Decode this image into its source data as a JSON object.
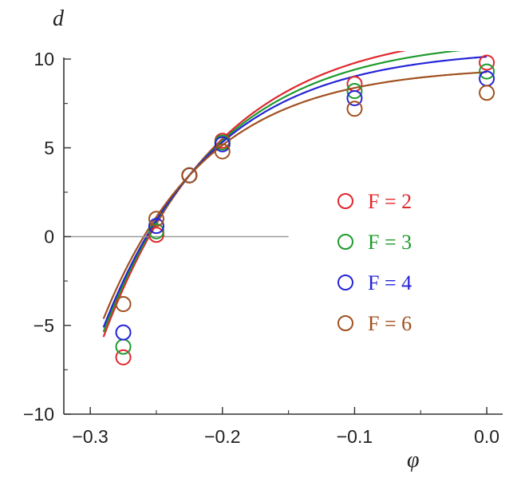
{
  "chart_data": {
    "type": "scatter",
    "title": "",
    "xlabel": "φ",
    "ylabel": "d",
    "xlim": [
      -0.32,
      0.012
    ],
    "ylim": [
      -10,
      10
    ],
    "x_ticks": [
      {
        "value": -0.3,
        "label": "−0.3"
      },
      {
        "value": -0.2,
        "label": "−0.2"
      },
      {
        "value": -0.1,
        "label": "−0.1"
      },
      {
        "value": 0.0,
        "label": "0.0"
      }
    ],
    "y_ticks": [
      {
        "value": 10,
        "label": "10"
      },
      {
        "value": 5,
        "label": "5"
      },
      {
        "value": 0,
        "label": "0"
      },
      {
        "value": -5,
        "label": "−5"
      },
      {
        "value": -10,
        "label": "−10"
      }
    ],
    "reference_line": {
      "y": 0,
      "x_from": -0.32,
      "x_to": -0.15,
      "color": "#999999"
    },
    "grid": false,
    "legend_position": "right",
    "series": [
      {
        "name": "F = 2",
        "color": "#e0282d",
        "x": [
          -0.275,
          -0.25,
          -0.225,
          -0.2,
          -0.1,
          0.0
        ],
        "y": [
          -6.8,
          0.1,
          3.45,
          5.4,
          8.6,
          9.8
        ]
      },
      {
        "name": "F = 3",
        "color": "#1f9a2e",
        "x": [
          -0.275,
          -0.25,
          -0.225,
          -0.2,
          -0.1,
          0.0
        ],
        "y": [
          -6.2,
          0.3,
          3.45,
          5.3,
          8.2,
          9.3
        ]
      },
      {
        "name": "F = 4",
        "color": "#2424d8",
        "x": [
          -0.275,
          -0.25,
          -0.225,
          -0.2,
          -0.1,
          0.0
        ],
        "y": [
          -5.4,
          0.6,
          3.45,
          5.2,
          7.8,
          8.9
        ]
      },
      {
        "name": "F = 6",
        "color": "#a0501e",
        "x": [
          -0.275,
          -0.25,
          -0.225,
          -0.2,
          -0.1,
          0.0
        ],
        "y": [
          -3.8,
          1.0,
          3.45,
          4.8,
          7.2,
          8.1
        ]
      }
    ],
    "fitted_curves": [
      {
        "series": "F = 2",
        "x_root": -0.2555,
        "x_pass": -0.225,
        "y_pass": 3.45,
        "asymptote": 11.8
      },
      {
        "series": "F = 3",
        "x_root": -0.2565,
        "x_pass": -0.225,
        "y_pass": 3.45,
        "asymptote": 11.2
      },
      {
        "series": "F = 4",
        "x_root": -0.2575,
        "x_pass": -0.225,
        "y_pass": 3.45,
        "asymptote": 10.6
      },
      {
        "series": "F = 6",
        "x_root": -0.2595,
        "x_pass": -0.225,
        "y_pass": 3.45,
        "asymptote": 9.6
      }
    ]
  }
}
